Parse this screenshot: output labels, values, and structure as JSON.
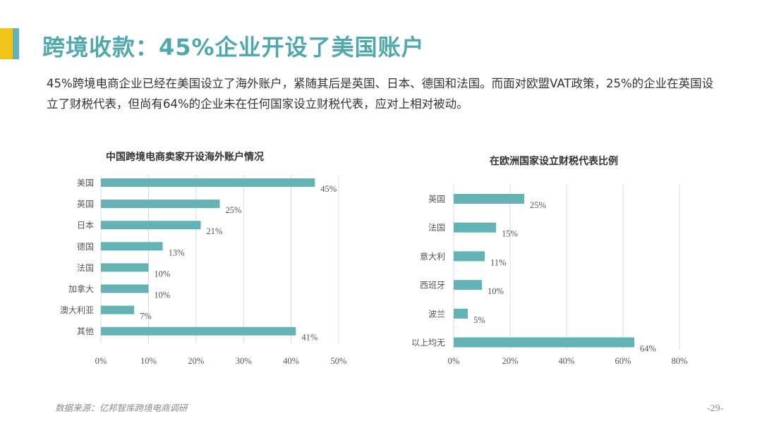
{
  "header": {
    "title": "跨境收款：45%企业开设了美国账户",
    "paragraph": "45%跨境电商企业已经在美国设立了海外账户，紧随其后是英国、日本、德国和法国。而面对欧盟VAT政策，25%的企业在英国设立了财税代表，但尚有64%的企业未在任何国家设立财税代表，应对上相对被动。"
  },
  "colors": {
    "bar": "#62b2b6",
    "title": "#4fa8ac",
    "accent_yellow": "#f2c318"
  },
  "chart_data": [
    {
      "type": "bar",
      "orientation": "horizontal",
      "title": "中国跨境电商卖家开设海外账户情况",
      "categories": [
        "美国",
        "英国",
        "日本",
        "德国",
        "法国",
        "加拿大",
        "澳大利亚",
        "其他"
      ],
      "values": [
        45,
        25,
        21,
        13,
        10,
        10,
        7,
        41
      ],
      "value_labels": [
        "45%",
        "25%",
        "21%",
        "13%",
        "10%",
        "10%",
        "7%",
        "41%"
      ],
      "xlim": [
        0,
        50
      ],
      "xticks": [
        0,
        10,
        20,
        30,
        40,
        50
      ],
      "xtick_labels": [
        "0%",
        "10%",
        "20%",
        "30%",
        "40%",
        "50%"
      ],
      "grid": true
    },
    {
      "type": "bar",
      "orientation": "horizontal",
      "title": "在欧洲国家设立财税代表比例",
      "categories": [
        "英国",
        "法国",
        "意大利",
        "西班牙",
        "波兰",
        "以上均无"
      ],
      "values": [
        25,
        15,
        11,
        10,
        5,
        64
      ],
      "value_labels": [
        "25%",
        "15%",
        "11%",
        "10%",
        "5%",
        "64%"
      ],
      "xlim": [
        0,
        80
      ],
      "xticks": [
        0,
        20,
        40,
        60,
        80
      ],
      "xtick_labels": [
        "0%",
        "20%",
        "40%",
        "60%",
        "80%"
      ],
      "grid": true
    }
  ],
  "footer": {
    "source": "数据来源：亿邦智库跨境电商调研",
    "page_number": "-29-"
  }
}
